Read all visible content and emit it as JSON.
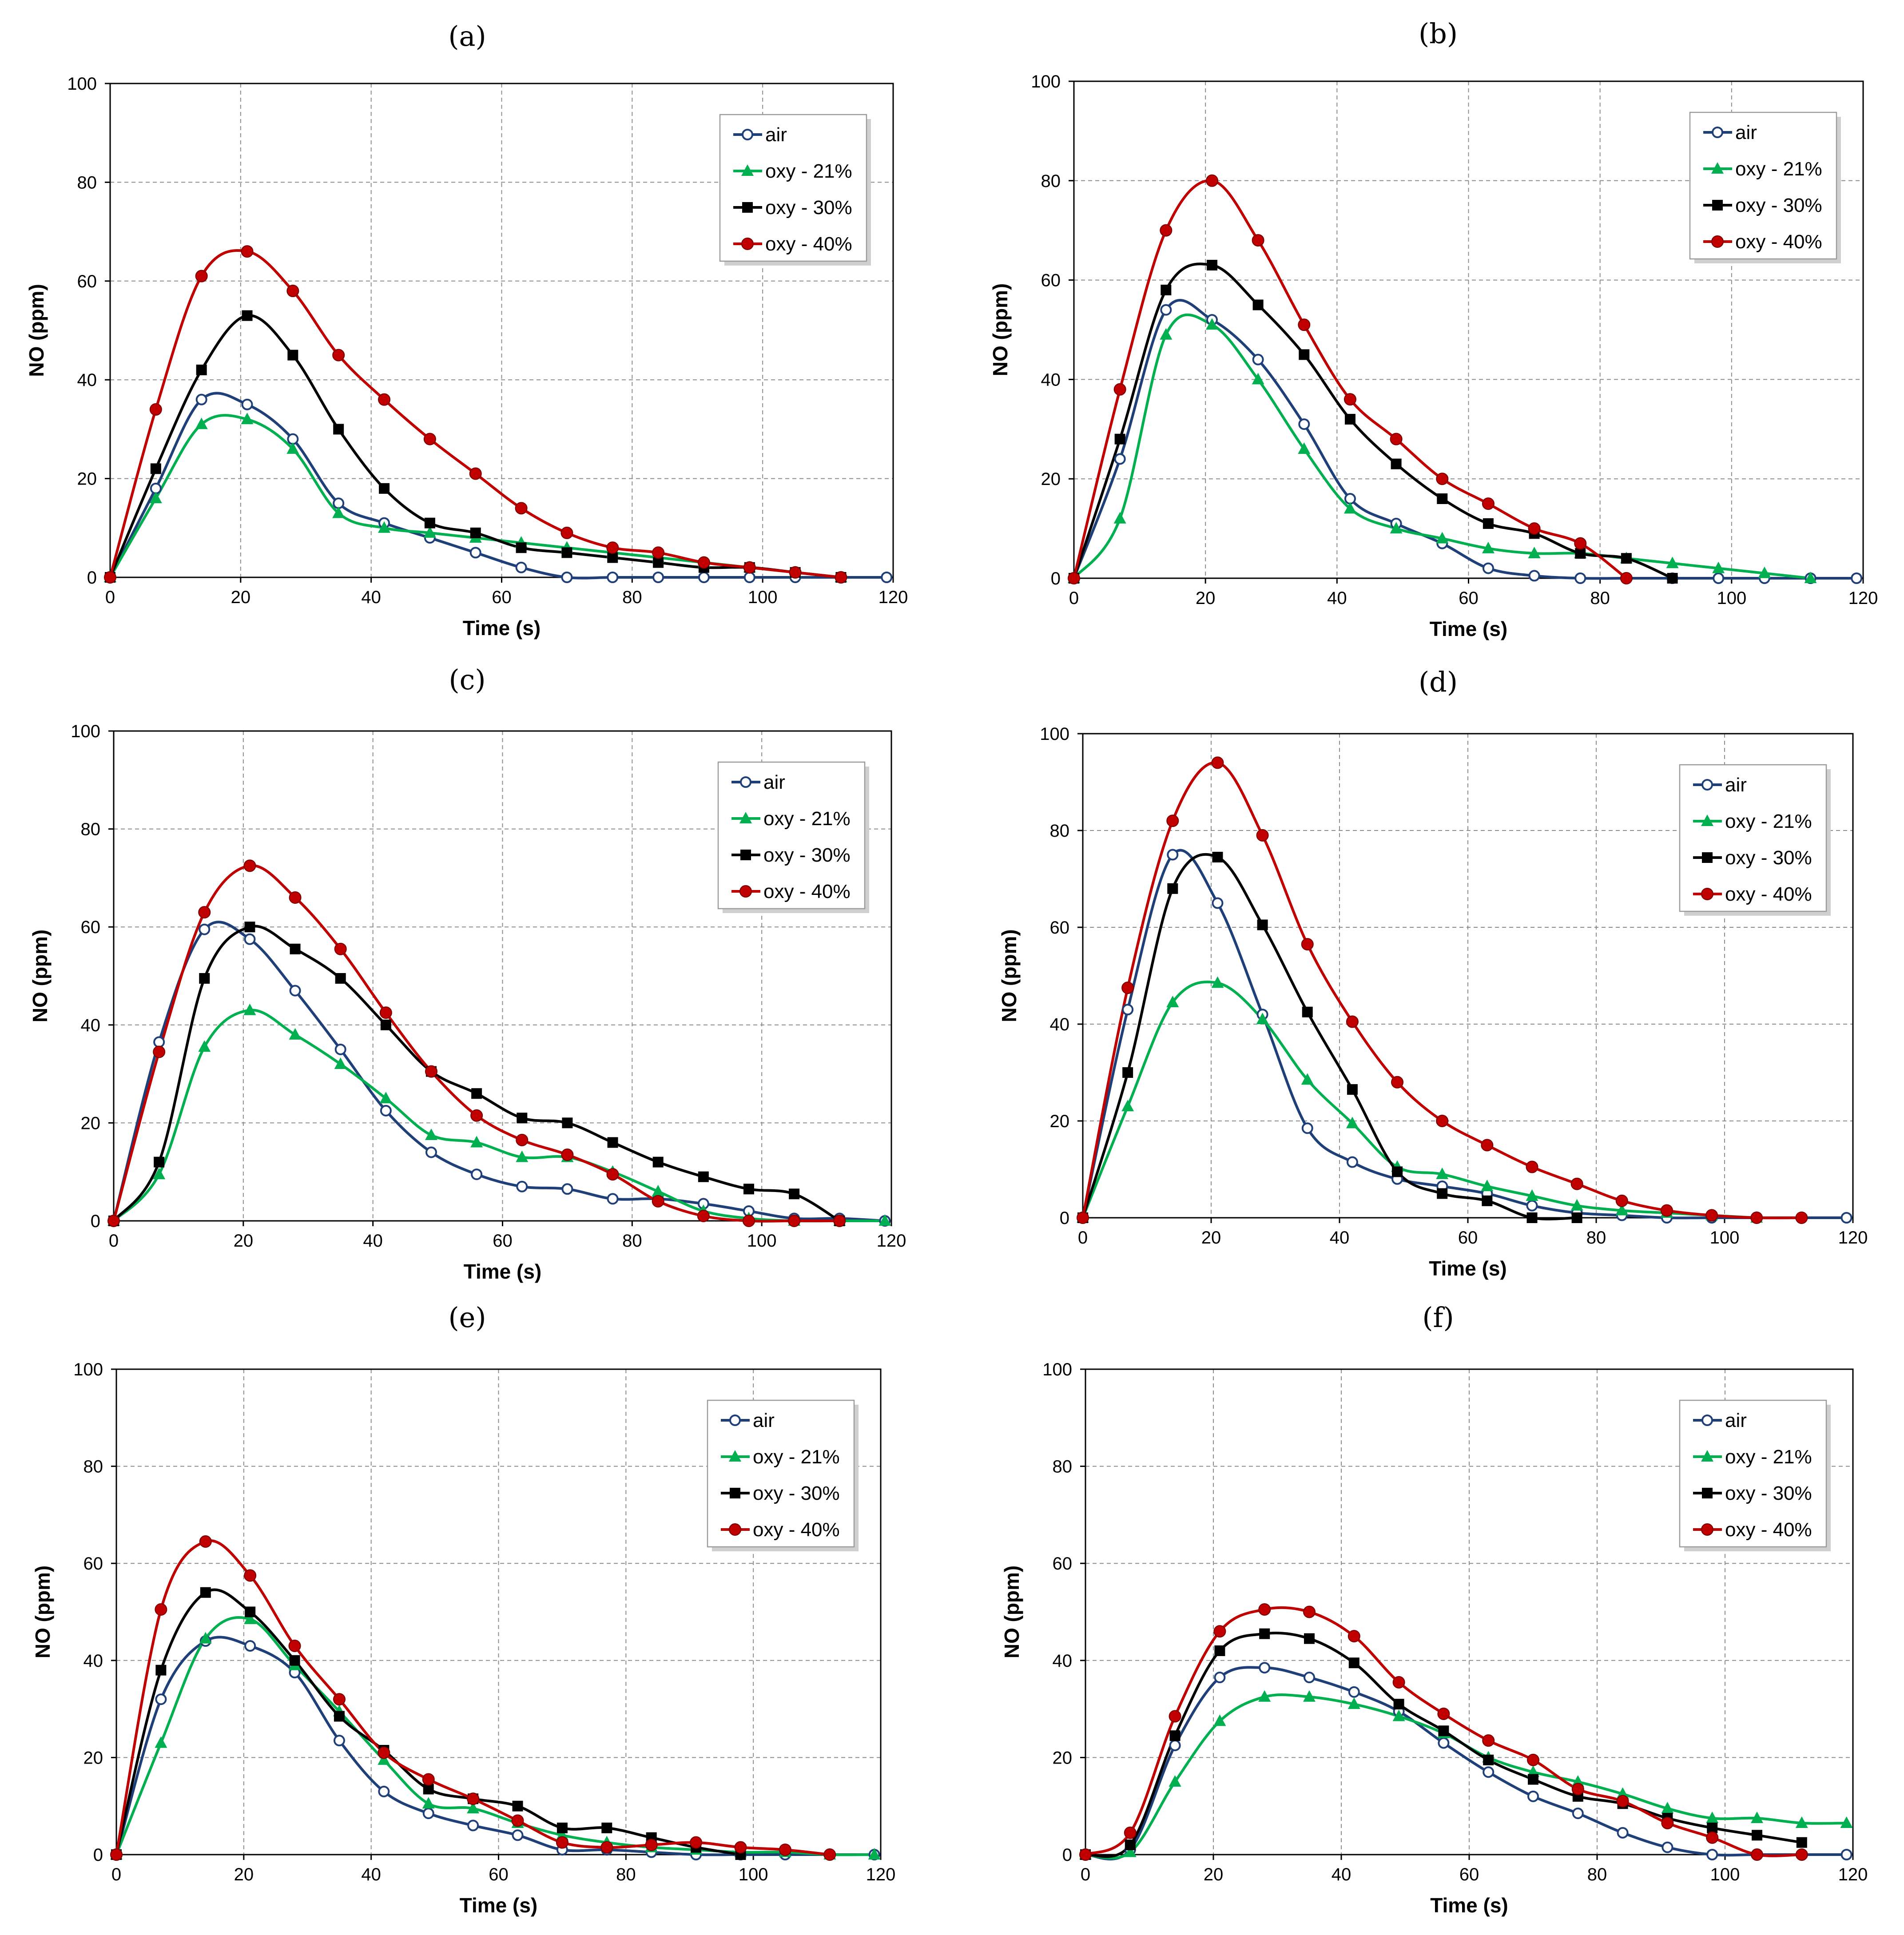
{
  "colors": {
    "air": "#1f3f78",
    "oxy21": "#00b050",
    "oxy30": "#000000",
    "oxy40": "#c00000"
  },
  "chart_data": [
    {
      "type": "line",
      "title": "(a)",
      "xlabel": "Time (s)",
      "ylabel": "NO (ppm)",
      "xlim": [
        0,
        120
      ],
      "ylim": [
        0,
        100
      ],
      "grid": true,
      "legend": "top-right",
      "xticks": [
        "0",
        "20",
        "40",
        "60",
        "80",
        "100",
        "120"
      ],
      "yticks": [
        "0",
        "20",
        "40",
        "60",
        "80",
        "100"
      ],
      "series": [
        {
          "name": "air",
          "marker": "circle",
          "x": [
            0,
            7,
            14,
            21,
            28,
            35,
            42,
            49,
            56,
            63,
            70,
            77,
            84,
            91,
            98,
            105,
            112,
            119
          ],
          "y": [
            0,
            18,
            36,
            35,
            28,
            15,
            11,
            8,
            5,
            2,
            0,
            0,
            0,
            0,
            0,
            0,
            0,
            0
          ]
        },
        {
          "name": "oxy - 21%",
          "marker": "triangle",
          "x": [
            0,
            7,
            14,
            21,
            28,
            35,
            42,
            49,
            56,
            63,
            70,
            77,
            84,
            91,
            98,
            105,
            112
          ],
          "y": [
            0,
            16,
            31,
            32,
            26,
            13,
            10,
            9,
            8,
            7,
            6,
            5,
            4,
            3,
            2,
            1,
            0
          ]
        },
        {
          "name": "oxy - 30%",
          "marker": "square",
          "x": [
            0,
            7,
            14,
            21,
            28,
            35,
            42,
            49,
            56,
            63,
            70,
            77,
            84,
            91,
            98,
            105,
            112
          ],
          "y": [
            0,
            22,
            42,
            53,
            45,
            30,
            18,
            11,
            9,
            6,
            5,
            4,
            3,
            2,
            2,
            1,
            0
          ]
        },
        {
          "name": "oxy - 40%",
          "marker": "circle-filled",
          "x": [
            0,
            7,
            14,
            21,
            28,
            35,
            42,
            49,
            56,
            63,
            70,
            77,
            84,
            91,
            98,
            105,
            112
          ],
          "y": [
            0,
            34,
            61,
            66,
            58,
            45,
            36,
            28,
            21,
            14,
            9,
            6,
            5,
            3,
            2,
            1,
            0
          ]
        }
      ]
    },
    {
      "type": "line",
      "title": "(b)",
      "xlabel": "Time (s)",
      "ylabel": "NO (ppm)",
      "xlim": [
        0,
        120
      ],
      "ylim": [
        0,
        100
      ],
      "grid": true,
      "legend": "top-right",
      "xticks": [
        "0",
        "20",
        "40",
        "60",
        "80",
        "100",
        "120"
      ],
      "yticks": [
        "0",
        "20",
        "40",
        "60",
        "80",
        "100"
      ],
      "series": [
        {
          "name": "air",
          "marker": "circle",
          "x": [
            0,
            7,
            14,
            21,
            28,
            35,
            42,
            49,
            56,
            63,
            70,
            77,
            84,
            91,
            98,
            105,
            112,
            119
          ],
          "y": [
            0,
            24,
            54,
            52,
            44,
            31,
            16,
            11,
            7,
            2,
            0.5,
            0,
            0,
            0,
            0,
            0,
            0,
            0
          ]
        },
        {
          "name": "oxy - 21%",
          "marker": "triangle",
          "x": [
            0,
            7,
            14,
            21,
            28,
            35,
            42,
            49,
            56,
            63,
            70,
            77,
            84,
            91,
            98,
            105,
            112
          ],
          "y": [
            0,
            12,
            49,
            51,
            40,
            26,
            14,
            10,
            8,
            6,
            5,
            5,
            4,
            3,
            2,
            1,
            0
          ]
        },
        {
          "name": "oxy - 30%",
          "marker": "square",
          "x": [
            0,
            7,
            14,
            21,
            28,
            35,
            42,
            49,
            56,
            63,
            70,
            77,
            84,
            91
          ],
          "y": [
            0,
            28,
            58,
            63,
            55,
            45,
            32,
            23,
            16,
            11,
            9,
            5,
            4,
            0
          ]
        },
        {
          "name": "oxy - 40%",
          "marker": "circle-filled",
          "x": [
            0,
            7,
            14,
            21,
            28,
            35,
            42,
            49,
            56,
            63,
            70,
            77,
            84
          ],
          "y": [
            0,
            38,
            70,
            80,
            68,
            51,
            36,
            28,
            20,
            15,
            10,
            7,
            0
          ]
        }
      ]
    },
    {
      "type": "line",
      "title": "(c)",
      "xlabel": "Time (s)",
      "ylabel": "NO (ppm)",
      "xlim": [
        0,
        120
      ],
      "ylim": [
        0,
        100
      ],
      "grid": true,
      "legend": "top-right",
      "xticks": [
        "0",
        "20",
        "40",
        "60",
        "80",
        "100",
        "120"
      ],
      "yticks": [
        "0",
        "20",
        "40",
        "60",
        "80",
        "100"
      ],
      "series": [
        {
          "name": "air",
          "marker": "circle",
          "x": [
            0,
            7,
            14,
            21,
            28,
            35,
            42,
            49,
            56,
            63,
            70,
            77,
            84,
            91,
            98,
            105,
            112,
            119
          ],
          "y": [
            0,
            36.5,
            59.5,
            57.5,
            47,
            35,
            22.5,
            14,
            9.5,
            7,
            6.5,
            4.5,
            4.5,
            3.5,
            2,
            0.5,
            0.5,
            0
          ]
        },
        {
          "name": "oxy - 21%",
          "marker": "triangle",
          "x": [
            0,
            7,
            14,
            21,
            28,
            35,
            42,
            49,
            56,
            63,
            70,
            77,
            84,
            91,
            98,
            105,
            112,
            119
          ],
          "y": [
            0,
            9.5,
            35.5,
            43,
            38,
            32,
            25,
            17.5,
            16,
            13,
            13,
            10,
            6,
            2,
            0.5,
            0,
            0,
            0
          ]
        },
        {
          "name": "oxy - 30%",
          "marker": "square",
          "x": [
            0,
            7,
            14,
            21,
            28,
            35,
            42,
            49,
            56,
            63,
            70,
            77,
            84,
            91,
            98,
            105,
            112
          ],
          "y": [
            0,
            12,
            49.5,
            60,
            55.5,
            49.5,
            40,
            30.5,
            26,
            21,
            20,
            16,
            12,
            9,
            6.5,
            5.5,
            0
          ]
        },
        {
          "name": "oxy - 40%",
          "marker": "circle-filled",
          "x": [
            0,
            7,
            14,
            21,
            28,
            35,
            42,
            49,
            56,
            63,
            70,
            77,
            84,
            91,
            98,
            105,
            112
          ],
          "y": [
            0,
            34.5,
            63,
            72.5,
            66,
            55.5,
            42.5,
            30.5,
            21.5,
            16.5,
            13.5,
            9.5,
            4,
            1,
            0,
            0,
            0
          ]
        }
      ]
    },
    {
      "type": "line",
      "title": "(d)",
      "xlabel": "Time (s)",
      "ylabel": "NO (ppm)",
      "xlim": [
        0,
        120
      ],
      "ylim": [
        0,
        100
      ],
      "grid": true,
      "legend": "top-right",
      "xticks": [
        "0",
        "20",
        "40",
        "60",
        "80",
        "100",
        "120"
      ],
      "yticks": [
        "0",
        "20",
        "40",
        "60",
        "80",
        "100"
      ],
      "series": [
        {
          "name": "air",
          "marker": "circle",
          "x": [
            0,
            7,
            14,
            21,
            28,
            35,
            42,
            49,
            56,
            63,
            70,
            77,
            84,
            91,
            98,
            105,
            112,
            119
          ],
          "y": [
            0,
            43,
            75,
            65,
            42,
            18.5,
            11.5,
            8,
            6.5,
            5,
            2.5,
            1,
            0.5,
            0,
            0,
            0,
            0,
            0
          ]
        },
        {
          "name": "oxy - 21%",
          "marker": "triangle",
          "x": [
            0,
            7,
            14,
            21,
            28,
            35,
            42,
            49,
            56,
            63,
            70,
            77,
            84,
            91,
            98,
            105
          ],
          "y": [
            0,
            23,
            44.5,
            48.5,
            41,
            28.5,
            19.5,
            10.5,
            9,
            6.5,
            4.5,
            2.5,
            1.5,
            1,
            0.5,
            0
          ]
        },
        {
          "name": "oxy - 30%",
          "marker": "square",
          "x": [
            0,
            7,
            14,
            21,
            28,
            35,
            42,
            49,
            56,
            63,
            70,
            77
          ],
          "y": [
            0,
            30,
            68,
            74.5,
            60.5,
            42.5,
            26.5,
            9.5,
            5,
            3.5,
            0,
            0
          ]
        },
        {
          "name": "oxy - 40%",
          "marker": "circle-filled",
          "x": [
            0,
            7,
            14,
            21,
            28,
            35,
            42,
            49,
            56,
            63,
            70,
            77,
            84,
            91,
            98,
            105,
            112
          ],
          "y": [
            0,
            47.5,
            82,
            94,
            79,
            56.5,
            40.5,
            28,
            20,
            15,
            10.5,
            7,
            3.5,
            1.5,
            0.5,
            0,
            0
          ]
        }
      ]
    },
    {
      "type": "line",
      "title": "(e)",
      "xlabel": "Time (s)",
      "ylabel": "NO (ppm)",
      "xlim": [
        0,
        120
      ],
      "ylim": [
        0,
        100
      ],
      "grid": true,
      "legend": "top-right",
      "xticks": [
        "0",
        "20",
        "40",
        "60",
        "80",
        "100",
        "120"
      ],
      "yticks": [
        "0",
        "20",
        "40",
        "60",
        "80",
        "100"
      ],
      "series": [
        {
          "name": "air",
          "marker": "circle",
          "x": [
            0,
            7,
            14,
            21,
            28,
            35,
            42,
            49,
            56,
            63,
            70,
            77,
            84,
            91,
            98,
            105,
            112,
            119
          ],
          "y": [
            0,
            32,
            44,
            43,
            37.5,
            23.5,
            13,
            8.5,
            6,
            4,
            1,
            1,
            0.5,
            0,
            0,
            0,
            0,
            0
          ]
        },
        {
          "name": "oxy - 21%",
          "marker": "triangle",
          "x": [
            0,
            7,
            14,
            21,
            28,
            35,
            42,
            49,
            56,
            63,
            70,
            77,
            84,
            91,
            98,
            105,
            112,
            119
          ],
          "y": [
            0,
            23,
            44.5,
            48.5,
            39,
            29.5,
            19.5,
            10.5,
            9.5,
            6.5,
            4,
            2.5,
            1.5,
            1,
            0.5,
            0.5,
            0,
            0
          ]
        },
        {
          "name": "oxy - 30%",
          "marker": "square",
          "x": [
            0,
            7,
            14,
            21,
            28,
            35,
            42,
            49,
            56,
            63,
            70,
            77,
            84,
            91,
            98
          ],
          "y": [
            0,
            38,
            54,
            50,
            40,
            28.5,
            21.5,
            13.5,
            11.5,
            10,
            5.5,
            5.5,
            3.5,
            1.5,
            0
          ]
        },
        {
          "name": "oxy - 40%",
          "marker": "circle-filled",
          "x": [
            0,
            7,
            14,
            21,
            28,
            35,
            42,
            49,
            56,
            63,
            70,
            77,
            84,
            91,
            98,
            105,
            112
          ],
          "y": [
            0,
            50.5,
            64.5,
            57.5,
            43,
            32,
            21,
            15.5,
            11.5,
            7,
            2.5,
            1.5,
            2,
            2.5,
            1.5,
            1,
            0
          ]
        }
      ]
    },
    {
      "type": "line",
      "title": "(f)",
      "xlabel": "Time (s)",
      "ylabel": "NO (ppm)",
      "xlim": [
        0,
        120
      ],
      "ylim": [
        0,
        100
      ],
      "grid": true,
      "legend": "top-right",
      "xticks": [
        "0",
        "20",
        "40",
        "60",
        "80",
        "100",
        "120"
      ],
      "yticks": [
        "0",
        "20",
        "40",
        "60",
        "80",
        "100"
      ],
      "series": [
        {
          "name": "air",
          "marker": "circle",
          "x": [
            0,
            7,
            14,
            21,
            28,
            35,
            42,
            49,
            56,
            63,
            70,
            77,
            84,
            91,
            98,
            105,
            112,
            119
          ],
          "y": [
            0,
            1,
            22.5,
            36.5,
            38.5,
            36.5,
            33.5,
            29.5,
            23,
            17,
            12,
            8.5,
            4.5,
            1.5,
            0,
            0,
            0,
            0
          ]
        },
        {
          "name": "oxy - 21%",
          "marker": "triangle",
          "x": [
            0,
            7,
            14,
            21,
            28,
            35,
            42,
            49,
            56,
            63,
            70,
            77,
            84,
            91,
            98,
            105,
            112,
            119
          ],
          "y": [
            0,
            0.5,
            15,
            27.5,
            32.5,
            32.5,
            31,
            28.5,
            25,
            20,
            17,
            15,
            12.5,
            9.5,
            7.5,
            7.5,
            6.5,
            6.5
          ]
        },
        {
          "name": "oxy - 30%",
          "marker": "square",
          "x": [
            0,
            7,
            14,
            21,
            28,
            35,
            42,
            49,
            56,
            63,
            70,
            77,
            84,
            91,
            98,
            105,
            112
          ],
          "y": [
            0,
            2,
            24.5,
            42,
            45.5,
            44.5,
            39.5,
            31,
            25.5,
            19.5,
            15.5,
            12,
            10.5,
            7.5,
            5.5,
            4,
            2.5
          ]
        },
        {
          "name": "oxy - 40%",
          "marker": "circle-filled",
          "x": [
            0,
            7,
            14,
            21,
            28,
            35,
            42,
            49,
            56,
            63,
            70,
            77,
            84,
            91,
            98,
            105,
            112
          ],
          "y": [
            0,
            4.5,
            28.5,
            46,
            50.5,
            50,
            45,
            35.5,
            29,
            23.5,
            19.5,
            13.5,
            11,
            6.5,
            3.5,
            0,
            0
          ]
        }
      ]
    }
  ]
}
